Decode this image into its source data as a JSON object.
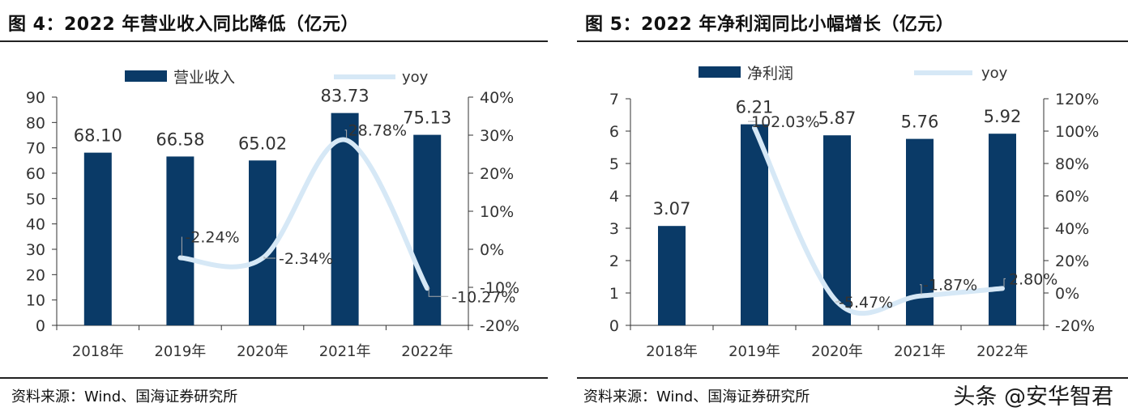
{
  "watermark": "头条 @安华智君",
  "colors": {
    "bar": "#0a3a67",
    "line": "#d6e8f6",
    "axis": "#333333",
    "leader": "#aaaaaa"
  },
  "chart_data": [
    {
      "type": "bar+line",
      "title": "图 4：2022 年营业收入同比降低（亿元）",
      "source": "资料来源：Wind、国海证券研究所",
      "categories": [
        "2018年",
        "2019年",
        "2020年",
        "2021年",
        "2022年"
      ],
      "bar_series": {
        "name": "营业收入",
        "values": [
          68.1,
          66.58,
          65.02,
          83.73,
          75.13
        ],
        "labels": [
          "68.10",
          "66.58",
          "65.02",
          "83.73",
          "75.13"
        ]
      },
      "line_series": {
        "name": "yoy",
        "values": [
          null,
          -2.24,
          -2.34,
          28.78,
          -10.27
        ],
        "labels": [
          "",
          "-2.24%",
          "-2.34%",
          "28.78%",
          "-10.27%"
        ]
      },
      "left_axis": {
        "min": 0,
        "max": 90,
        "step": 10,
        "ticks": [
          "0",
          "10",
          "20",
          "30",
          "40",
          "50",
          "60",
          "70",
          "80",
          "90"
        ]
      },
      "right_axis": {
        "min": -20,
        "max": 40,
        "step": 10,
        "ticks": [
          "-20%",
          "-10%",
          "0%",
          "10%",
          "20%",
          "30%",
          "40%"
        ]
      },
      "legend": "top"
    },
    {
      "type": "bar+line",
      "title": "图 5：2022 年净利润同比小幅增长（亿元）",
      "source": "资料来源：Wind、国海证券研究所",
      "categories": [
        "2018年",
        "2019年",
        "2020年",
        "2021年",
        "2022年"
      ],
      "bar_series": {
        "name": "净利润",
        "values": [
          3.07,
          6.21,
          5.87,
          5.76,
          5.92
        ],
        "labels": [
          "3.07",
          "6.21",
          "5.87",
          "5.76",
          "5.92"
        ]
      },
      "line_series": {
        "name": "yoy",
        "values": [
          null,
          102.03,
          -5.47,
          -1.87,
          2.8
        ],
        "labels": [
          "",
          "102.03%",
          "-5.47%",
          "-1.87%",
          "2.80%"
        ]
      },
      "left_axis": {
        "min": 0,
        "max": 7,
        "step": 1,
        "ticks": [
          "0",
          "1",
          "2",
          "3",
          "4",
          "5",
          "6",
          "7"
        ]
      },
      "right_axis": {
        "min": -20,
        "max": 120,
        "step": 20,
        "ticks": [
          "-20%",
          "0%",
          "20%",
          "40%",
          "60%",
          "80%",
          "100%",
          "120%"
        ]
      },
      "legend": "top"
    }
  ]
}
